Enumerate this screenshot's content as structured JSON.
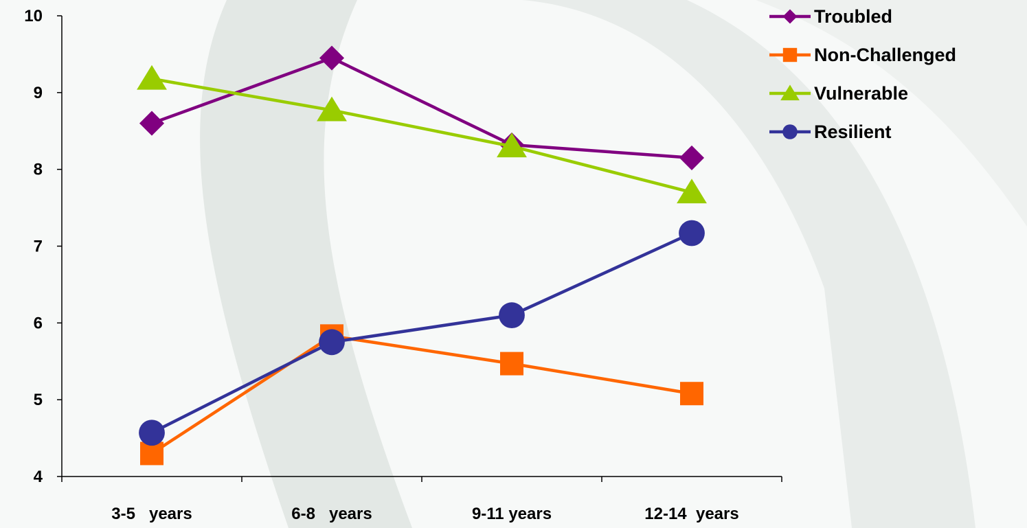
{
  "chart_data": {
    "type": "line",
    "title": "",
    "xlabel": "",
    "ylabel": "",
    "categories": [
      "3-5   years",
      "6-8   years",
      "9-11 years",
      "12-14  years"
    ],
    "ylim": [
      4,
      10
    ],
    "yticks": [
      4,
      5,
      6,
      7,
      8,
      9,
      10
    ],
    "grid": false,
    "legend_position": "top-right",
    "series": [
      {
        "name": "Troubled",
        "values": [
          8.6,
          9.45,
          8.32,
          8.15
        ],
        "color": "#800080",
        "marker": "diamond"
      },
      {
        "name": "Non-Challenged",
        "values": [
          4.3,
          5.83,
          5.47,
          5.08
        ],
        "color": "#FF6600",
        "marker": "square"
      },
      {
        "name": "Vulnerable",
        "values": [
          9.18,
          8.77,
          8.3,
          7.7
        ],
        "color": "#99CC00",
        "marker": "triangle"
      },
      {
        "name": "Resilient",
        "values": [
          4.57,
          5.75,
          6.1,
          7.17
        ],
        "color": "#333399",
        "marker": "circle"
      }
    ]
  }
}
